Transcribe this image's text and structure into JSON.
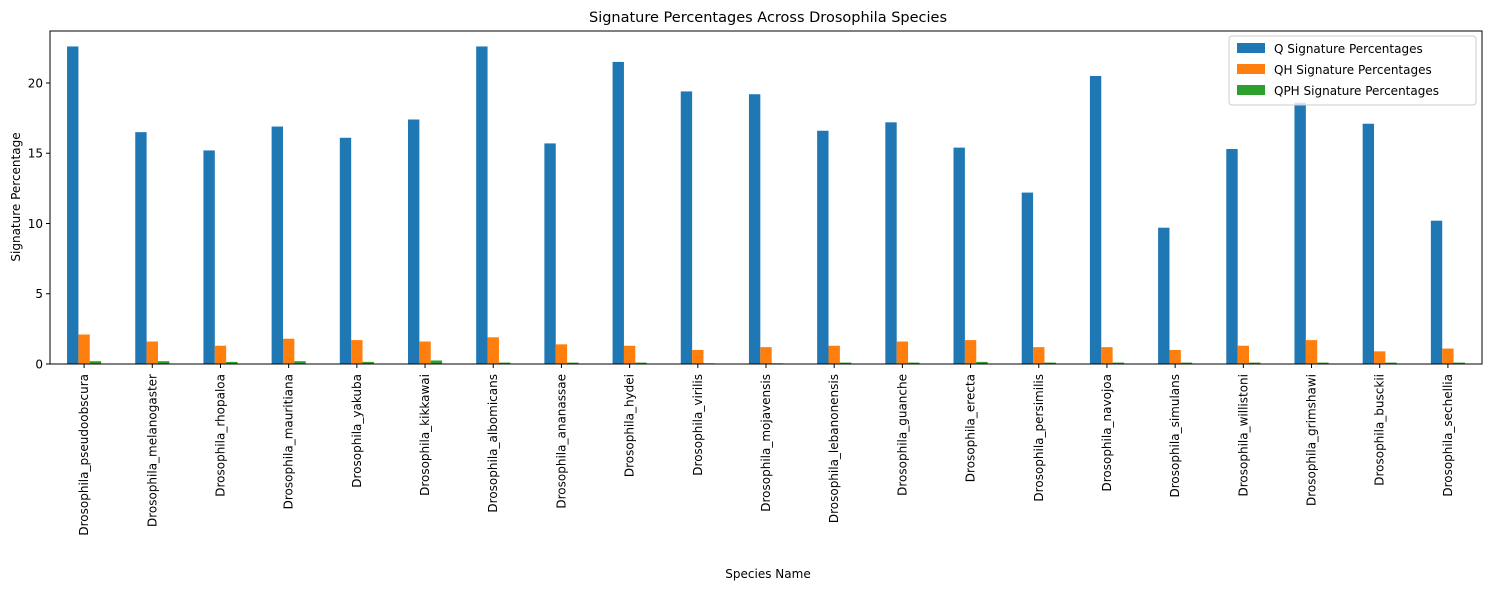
{
  "chart_data": {
    "type": "bar",
    "title": "Signature Percentages Across Drosophila Species",
    "xlabel": "Species Name",
    "ylabel": "Signature Percentage",
    "ylim": [
      0,
      23.7
    ],
    "yticks": [
      0,
      5,
      10,
      15,
      20
    ],
    "grid": false,
    "legend_position": "top-right",
    "categories": [
      "Drosophila_pseudoobscura",
      "Drosophila_melanogaster",
      "Drosophila_rhopaloa",
      "Drosophila_mauritiana",
      "Drosophila_yakuba",
      "Drosophila_kikkawai",
      "Drosophila_albomicans",
      "Drosophila_ananassae",
      "Drosophila_hydei",
      "Drosophila_virilis",
      "Drosophila_mojavensis",
      "Drosophila_lebanonensis",
      "Drosophila_guanche",
      "Drosophila_erecta",
      "Drosophila_persimilis",
      "Drosophila_navojoa",
      "Drosophila_simulans",
      "Drosophila_willistoni",
      "Drosophila_grimshawi",
      "Drosophila_busckii",
      "Drosophila_sechellia"
    ],
    "series": [
      {
        "name": "Q Signature Percentages",
        "color": "#1f77b4",
        "values": [
          22.6,
          16.5,
          15.2,
          16.9,
          16.1,
          17.4,
          22.6,
          15.7,
          21.5,
          19.4,
          19.2,
          16.6,
          17.2,
          15.4,
          12.2,
          20.5,
          9.7,
          15.3,
          18.6,
          17.1,
          10.2
        ]
      },
      {
        "name": "QH Signature Percentages",
        "color": "#ff7f0e",
        "values": [
          2.1,
          1.6,
          1.3,
          1.8,
          1.7,
          1.6,
          1.9,
          1.4,
          1.3,
          1.0,
          1.2,
          1.3,
          1.6,
          1.7,
          1.2,
          1.2,
          1.0,
          1.3,
          1.7,
          0.9,
          1.1
        ]
      },
      {
        "name": "QPH Signature Percentages",
        "color": "#2ca02c",
        "values": [
          0.2,
          0.2,
          0.15,
          0.2,
          0.15,
          0.25,
          0.1,
          0.1,
          0.1,
          0.05,
          0.05,
          0.1,
          0.1,
          0.15,
          0.1,
          0.1,
          0.1,
          0.1,
          0.1,
          0.1,
          0.1
        ]
      }
    ]
  }
}
